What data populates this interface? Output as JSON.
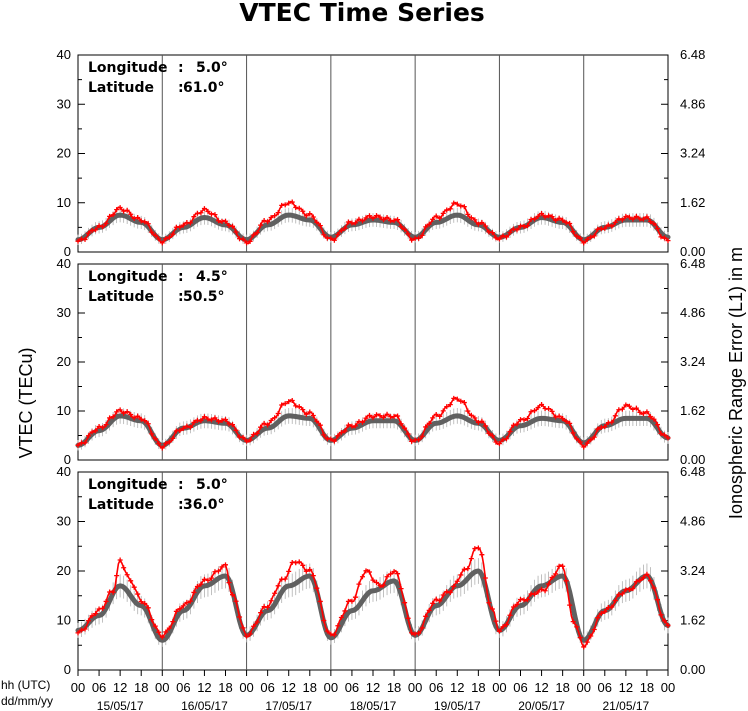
{
  "chart_data": {
    "type": "line",
    "title": "VTEC Time Series",
    "ylabel_left": "VTEC (TECu)",
    "ylabel_right": "Ionospheric Range Error (L1) in m",
    "xlabel_time": "hh (UTC)",
    "xlabel_date": "dd/mm/yy",
    "hour_ticks": [
      "00",
      "06",
      "12",
      "18"
    ],
    "final_tick": "00",
    "dates": [
      "15/05/17",
      "16/05/17",
      "17/05/17",
      "18/05/17",
      "19/05/17",
      "20/05/17",
      "21/05/17"
    ],
    "ylim": [
      0,
      40
    ],
    "yticks_left": [
      "0",
      "10",
      "20",
      "30",
      "40"
    ],
    "yticks_right": [
      "0.00",
      "1.62",
      "3.24",
      "4.86",
      "6.48"
    ],
    "series_colors": {
      "measured": "#ff0000",
      "model": "#606060",
      "error_bars": "#b0b0b0"
    },
    "panels": [
      {
        "lon_label": "Longitude",
        "lat_label": "Latitude",
        "sep": ":",
        "lon": "5.0°",
        "lat": "61.0°",
        "red": [
          [
            0,
            2.2
          ],
          [
            6,
            5
          ],
          [
            12,
            8.8
          ],
          [
            18,
            6.5
          ],
          [
            24,
            2.2
          ],
          [
            30,
            5.5
          ],
          [
            36,
            8.5
          ],
          [
            42,
            6
          ],
          [
            48,
            2
          ],
          [
            54,
            6.5
          ],
          [
            60,
            10
          ],
          [
            66,
            7.5
          ],
          [
            72,
            2.5
          ],
          [
            78,
            6
          ],
          [
            84,
            7.2
          ],
          [
            90,
            6.5
          ],
          [
            96,
            2.5
          ],
          [
            102,
            7
          ],
          [
            108,
            9.8
          ],
          [
            114,
            6
          ],
          [
            120,
            2.8
          ],
          [
            126,
            5
          ],
          [
            132,
            7.5
          ],
          [
            138,
            6.5
          ],
          [
            144,
            2.2
          ],
          [
            150,
            5
          ],
          [
            156,
            7
          ],
          [
            162,
            6.8
          ],
          [
            168,
            2.3
          ]
        ],
        "grey": [
          [
            0,
            2.5
          ],
          [
            6,
            5
          ],
          [
            12,
            7.5
          ],
          [
            18,
            6
          ],
          [
            24,
            2.5
          ],
          [
            30,
            5
          ],
          [
            36,
            7
          ],
          [
            42,
            5.5
          ],
          [
            48,
            2.5
          ],
          [
            54,
            5.5
          ],
          [
            60,
            7.5
          ],
          [
            66,
            6.5
          ],
          [
            72,
            3
          ],
          [
            78,
            5.5
          ],
          [
            84,
            6.5
          ],
          [
            90,
            6
          ],
          [
            96,
            3
          ],
          [
            102,
            6
          ],
          [
            108,
            7.5
          ],
          [
            114,
            5.5
          ],
          [
            120,
            3
          ],
          [
            126,
            5
          ],
          [
            132,
            7
          ],
          [
            138,
            6
          ],
          [
            144,
            2.5
          ],
          [
            150,
            5
          ],
          [
            156,
            6.5
          ],
          [
            162,
            6.5
          ],
          [
            168,
            3
          ]
        ]
      },
      {
        "lon_label": "Longitude",
        "lat_label": "Latitude",
        "sep": ":",
        "lon": "4.5°",
        "lat": "50.5°",
        "red": [
          [
            0,
            3
          ],
          [
            6,
            6.5
          ],
          [
            12,
            10
          ],
          [
            18,
            8.5
          ],
          [
            24,
            2.8
          ],
          [
            30,
            6.5
          ],
          [
            36,
            8.5
          ],
          [
            42,
            8
          ],
          [
            48,
            4
          ],
          [
            54,
            7.5
          ],
          [
            60,
            12
          ],
          [
            66,
            9.5
          ],
          [
            72,
            4
          ],
          [
            78,
            7
          ],
          [
            84,
            9
          ],
          [
            90,
            9
          ],
          [
            96,
            3.8
          ],
          [
            102,
            9
          ],
          [
            108,
            12.5
          ],
          [
            114,
            8
          ],
          [
            120,
            3.5
          ],
          [
            126,
            8
          ],
          [
            132,
            11
          ],
          [
            138,
            8.5
          ],
          [
            144,
            3
          ],
          [
            150,
            7
          ],
          [
            156,
            11
          ],
          [
            162,
            9.5
          ],
          [
            168,
            4.5
          ]
        ],
        "grey": [
          [
            0,
            3
          ],
          [
            6,
            6
          ],
          [
            12,
            9
          ],
          [
            18,
            8
          ],
          [
            24,
            3
          ],
          [
            30,
            6.5
          ],
          [
            36,
            8
          ],
          [
            42,
            7.5
          ],
          [
            48,
            4
          ],
          [
            54,
            6.5
          ],
          [
            60,
            9
          ],
          [
            66,
            8.5
          ],
          [
            72,
            4
          ],
          [
            78,
            6.5
          ],
          [
            84,
            8
          ],
          [
            90,
            8
          ],
          [
            96,
            4
          ],
          [
            102,
            7.5
          ],
          [
            108,
            9
          ],
          [
            114,
            7.5
          ],
          [
            120,
            4
          ],
          [
            126,
            7
          ],
          [
            132,
            8.5
          ],
          [
            138,
            8
          ],
          [
            144,
            3.5
          ],
          [
            150,
            7
          ],
          [
            156,
            8.5
          ],
          [
            162,
            8.5
          ],
          [
            168,
            4.5
          ]
        ]
      },
      {
        "lon_label": "Longitude",
        "lat_label": "Latitude",
        "sep": ":",
        "lon": "5.0°",
        "lat": "36.0°",
        "red": [
          [
            0,
            7.5
          ],
          [
            6,
            12
          ],
          [
            10,
            16
          ],
          [
            12,
            22
          ],
          [
            15,
            18
          ],
          [
            18,
            14
          ],
          [
            24,
            7
          ],
          [
            30,
            13
          ],
          [
            36,
            18
          ],
          [
            42,
            21
          ],
          [
            44,
            15
          ],
          [
            48,
            7
          ],
          [
            54,
            13
          ],
          [
            58,
            18
          ],
          [
            62,
            22
          ],
          [
            66,
            20
          ],
          [
            72,
            7
          ],
          [
            78,
            14
          ],
          [
            82,
            20
          ],
          [
            86,
            17
          ],
          [
            90,
            20
          ],
          [
            96,
            7
          ],
          [
            102,
            14
          ],
          [
            106,
            16
          ],
          [
            110,
            20
          ],
          [
            114,
            25
          ],
          [
            118,
            12
          ],
          [
            120,
            8
          ],
          [
            126,
            14
          ],
          [
            132,
            16
          ],
          [
            138,
            21
          ],
          [
            141,
            10
          ],
          [
            144,
            5
          ],
          [
            150,
            12
          ],
          [
            156,
            16
          ],
          [
            162,
            19
          ],
          [
            168,
            9
          ]
        ],
        "grey": [
          [
            0,
            8
          ],
          [
            6,
            11
          ],
          [
            12,
            17
          ],
          [
            18,
            13
          ],
          [
            24,
            6
          ],
          [
            30,
            12
          ],
          [
            36,
            17
          ],
          [
            42,
            19
          ],
          [
            48,
            7
          ],
          [
            54,
            12
          ],
          [
            60,
            17
          ],
          [
            66,
            19
          ],
          [
            72,
            6.5
          ],
          [
            78,
            12
          ],
          [
            84,
            16
          ],
          [
            90,
            18
          ],
          [
            96,
            7
          ],
          [
            102,
            13
          ],
          [
            108,
            17
          ],
          [
            114,
            20
          ],
          [
            120,
            8
          ],
          [
            126,
            13
          ],
          [
            132,
            17
          ],
          [
            138,
            19
          ],
          [
            144,
            6
          ],
          [
            150,
            12
          ],
          [
            156,
            16
          ],
          [
            162,
            19
          ],
          [
            168,
            9
          ]
        ]
      }
    ]
  }
}
